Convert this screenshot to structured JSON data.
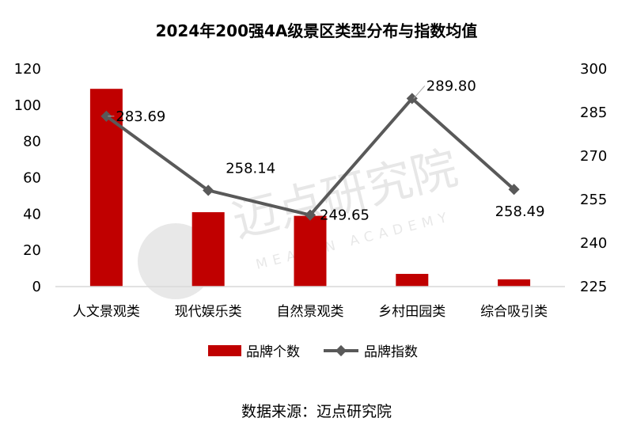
{
  "chart_data": {
    "type": "bar+line",
    "title": "2024年200强4A级景区类型分布与指数均值",
    "categories": [
      "人文景观类",
      "现代娱乐类",
      "自然景观类",
      "乡村田园类",
      "综合吸引类"
    ],
    "series": [
      {
        "name": "品牌个数",
        "type": "bar",
        "axis": "left",
        "color": "#C00000",
        "values": [
          109,
          41,
          39,
          7,
          4
        ]
      },
      {
        "name": "品牌指数",
        "type": "line",
        "axis": "right",
        "color": "#595959",
        "values": [
          283.69,
          258.14,
          249.65,
          289.8,
          258.49
        ],
        "data_labels": [
          "283.69",
          "258.14",
          "249.65",
          "289.80",
          "258.49"
        ]
      }
    ],
    "y_left": {
      "min": 0,
      "max": 120,
      "ticks": [
        "0",
        "20",
        "40",
        "60",
        "80",
        "100",
        "120"
      ]
    },
    "y_right": {
      "min": 225,
      "max": 300,
      "ticks": [
        "225",
        "240",
        "255",
        "270",
        "285",
        "300"
      ]
    },
    "legend_position": "bottom",
    "grid": false
  },
  "watermark": {
    "cn": "迈点研究院",
    "en": "MEADIN ACADEMY"
  },
  "source": "数据来源：迈点研究院"
}
